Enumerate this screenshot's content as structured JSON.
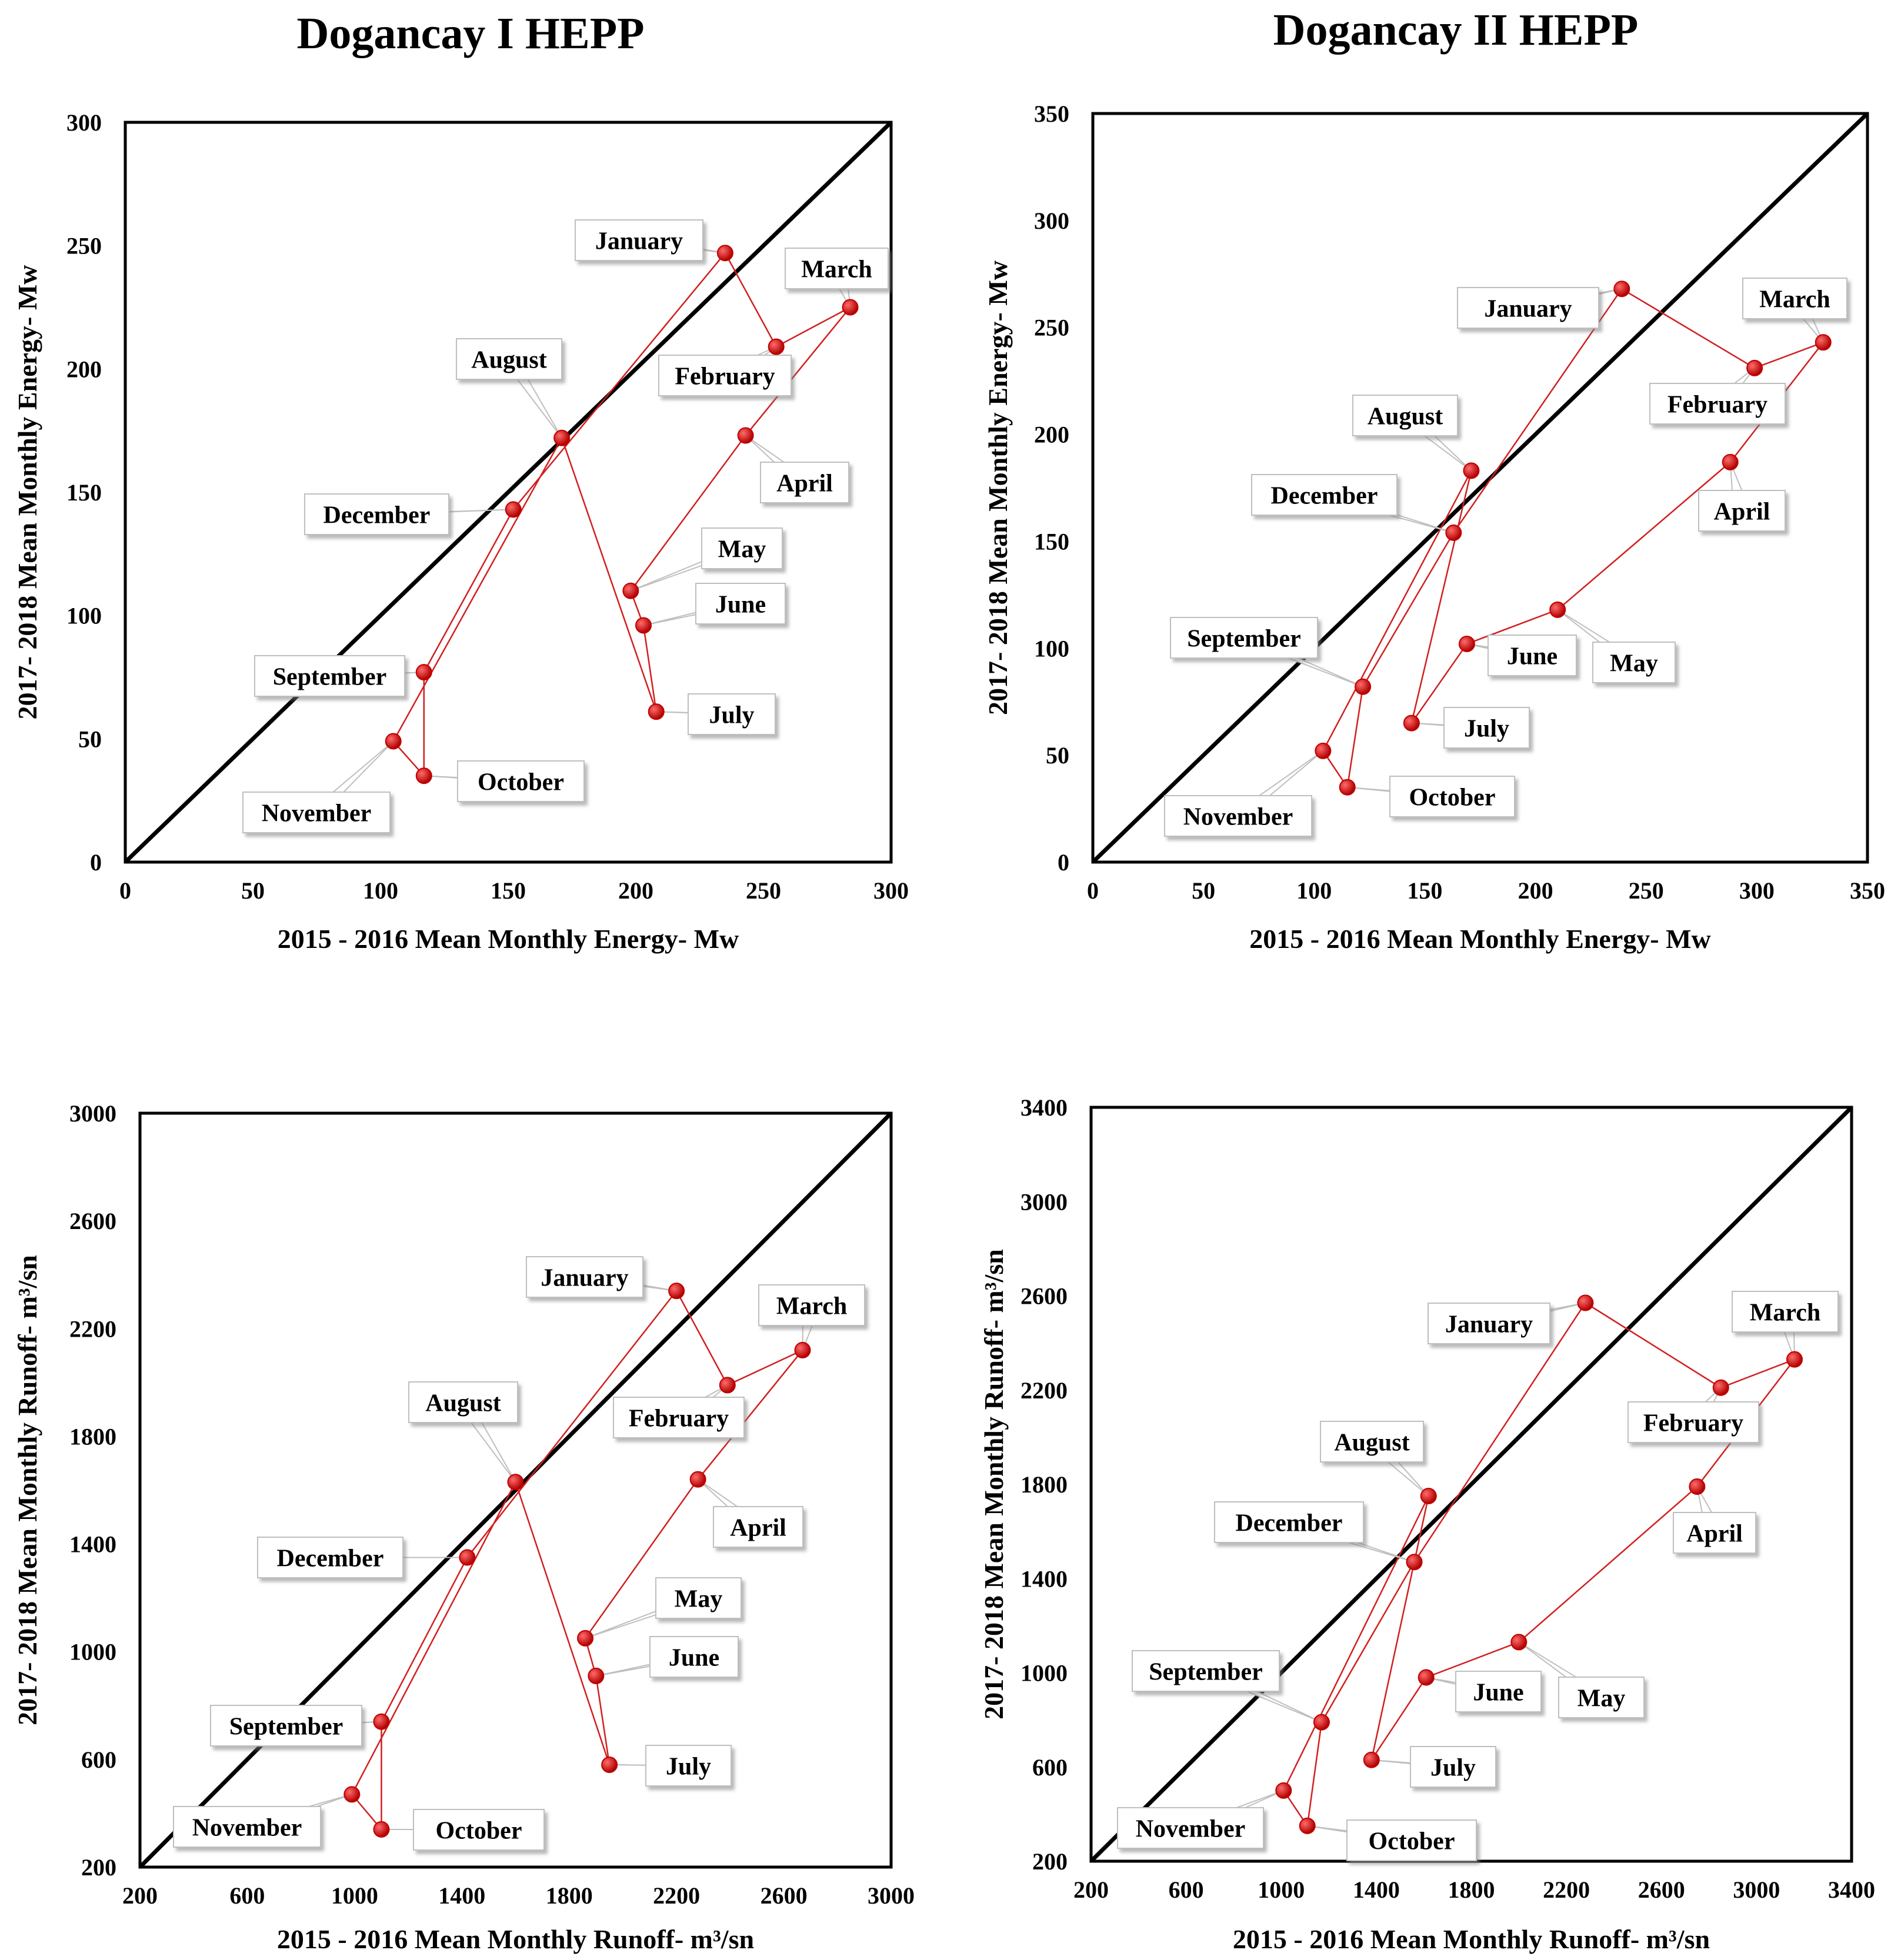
{
  "titles": {
    "left": "Dogancay I HEPP",
    "right": "Dogancay II HEPP"
  },
  "colors": {
    "series": "#d11f1f",
    "marker": "#c00000",
    "diagonal": "#000000",
    "frame": "#000000",
    "callout_border": "#bfbfbf"
  },
  "chart_data": [
    {
      "id": "energy-1",
      "type": "scatter",
      "title": "Dogancay I HEPP",
      "xlabel": "2015 - 2016 Mean Monthly Energy- Mw",
      "ylabel": "2017- 2018 Mean Monthly Energy- Mw",
      "xlim": [
        0,
        300
      ],
      "ylim": [
        0,
        300
      ],
      "xticks": [
        0,
        50,
        100,
        150,
        200,
        250,
        300
      ],
      "yticks": [
        0,
        50,
        100,
        150,
        200,
        250,
        300
      ],
      "diagonal": [
        [
          0,
          0
        ],
        [
          300,
          300
        ]
      ],
      "points": [
        {
          "label": "January",
          "x": 235,
          "y": 247
        },
        {
          "label": "February",
          "x": 255,
          "y": 209
        },
        {
          "label": "March",
          "x": 284,
          "y": 225
        },
        {
          "label": "April",
          "x": 243,
          "y": 173
        },
        {
          "label": "May",
          "x": 198,
          "y": 110
        },
        {
          "label": "June",
          "x": 203,
          "y": 96
        },
        {
          "label": "July",
          "x": 208,
          "y": 61
        },
        {
          "label": "August",
          "x": 171,
          "y": 172
        },
        {
          "label": "September",
          "x": 117,
          "y": 77
        },
        {
          "label": "October",
          "x": 117,
          "y": 35
        },
        {
          "label": "November",
          "x": 105,
          "y": 49
        },
        {
          "label": "December",
          "x": 152,
          "y": 143
        }
      ],
      "path_order": [
        "November",
        "October",
        "September",
        "December",
        "January",
        "February",
        "March",
        "April",
        "May",
        "June",
        "July",
        "August",
        "November"
      ]
    },
    {
      "id": "energy-2",
      "type": "scatter",
      "title": "Dogancay II HEPP",
      "xlabel": "2015 - 2016 Mean Monthly Energy- Mw",
      "ylabel": "2017- 2018 Mean Monthly Energy- Mw",
      "xlim": [
        0,
        350
      ],
      "ylim": [
        0,
        350
      ],
      "xticks": [
        0,
        50,
        100,
        150,
        200,
        250,
        300,
        350
      ],
      "yticks": [
        0,
        50,
        100,
        150,
        200,
        250,
        300,
        350
      ],
      "diagonal": [
        [
          0,
          0
        ],
        [
          350,
          350
        ]
      ],
      "points": [
        {
          "label": "January",
          "x": 239,
          "y": 268
        },
        {
          "label": "February",
          "x": 299,
          "y": 231
        },
        {
          "label": "March",
          "x": 330,
          "y": 243
        },
        {
          "label": "April",
          "x": 288,
          "y": 187
        },
        {
          "label": "May",
          "x": 210,
          "y": 118
        },
        {
          "label": "June",
          "x": 169,
          "y": 102
        },
        {
          "label": "July",
          "x": 144,
          "y": 65
        },
        {
          "label": "August",
          "x": 171,
          "y": 183
        },
        {
          "label": "September",
          "x": 122,
          "y": 82
        },
        {
          "label": "October",
          "x": 115,
          "y": 35
        },
        {
          "label": "November",
          "x": 104,
          "y": 52
        },
        {
          "label": "December",
          "x": 163,
          "y": 154
        }
      ],
      "path_order": [
        "November",
        "October",
        "September",
        "December",
        "January",
        "February",
        "March",
        "April",
        "May",
        "June",
        "July",
        "August",
        "November"
      ]
    },
    {
      "id": "runoff-1",
      "type": "scatter",
      "xlabel": "2015 - 2016 Mean Monthly Runoff- m³/sn",
      "ylabel": "2017- 2018 Mean Monthly Runoff- m³/sn",
      "xlim": [
        200,
        3000
      ],
      "ylim": [
        200,
        3000
      ],
      "xticks": [
        200,
        600,
        1000,
        1400,
        1800,
        2200,
        2600,
        3000
      ],
      "yticks": [
        200,
        600,
        1000,
        1400,
        1800,
        2200,
        2600,
        3000
      ],
      "diagonal": [
        [
          200,
          200
        ],
        [
          3000,
          3000
        ]
      ],
      "points": [
        {
          "label": "January",
          "x": 2200,
          "y": 2340
        },
        {
          "label": "February",
          "x": 2390,
          "y": 1990
        },
        {
          "label": "March",
          "x": 2670,
          "y": 2120
        },
        {
          "label": "April",
          "x": 2280,
          "y": 1640
        },
        {
          "label": "May",
          "x": 1860,
          "y": 1050
        },
        {
          "label": "June",
          "x": 1900,
          "y": 910
        },
        {
          "label": "July",
          "x": 1950,
          "y": 580
        },
        {
          "label": "August",
          "x": 1600,
          "y": 1630
        },
        {
          "label": "September",
          "x": 1100,
          "y": 740
        },
        {
          "label": "October",
          "x": 1100,
          "y": 340
        },
        {
          "label": "November",
          "x": 990,
          "y": 470
        },
        {
          "label": "December",
          "x": 1420,
          "y": 1350
        }
      ],
      "path_order": [
        "November",
        "October",
        "September",
        "December",
        "January",
        "February",
        "March",
        "April",
        "May",
        "June",
        "July",
        "August",
        "November"
      ]
    },
    {
      "id": "runoff-2",
      "type": "scatter",
      "xlabel": "2015 - 2016 Mean Monthly Runoff- m³/sn",
      "ylabel": "2017- 2018 Mean Monthly Runoff- m³/sn",
      "xlim": [
        200,
        3400
      ],
      "ylim": [
        200,
        3400
      ],
      "xticks": [
        200,
        600,
        1000,
        1400,
        1800,
        2200,
        2600,
        3000,
        3400
      ],
      "yticks": [
        200,
        600,
        1000,
        1400,
        1800,
        2200,
        2600,
        3000,
        3400
      ],
      "diagonal": [
        [
          200,
          200
        ],
        [
          3400,
          3400
        ]
      ],
      "points": [
        {
          "label": "January",
          "x": 2280,
          "y": 2570
        },
        {
          "label": "February",
          "x": 2850,
          "y": 2210
        },
        {
          "label": "March",
          "x": 3160,
          "y": 2330
        },
        {
          "label": "April",
          "x": 2750,
          "y": 1790
        },
        {
          "label": "May",
          "x": 2000,
          "y": 1130
        },
        {
          "label": "June",
          "x": 1610,
          "y": 980
        },
        {
          "label": "July",
          "x": 1380,
          "y": 630
        },
        {
          "label": "August",
          "x": 1620,
          "y": 1750
        },
        {
          "label": "September",
          "x": 1170,
          "y": 790
        },
        {
          "label": "October",
          "x": 1110,
          "y": 350
        },
        {
          "label": "November",
          "x": 1010,
          "y": 500
        },
        {
          "label": "December",
          "x": 1560,
          "y": 1470
        }
      ],
      "path_order": [
        "November",
        "October",
        "September",
        "December",
        "January",
        "February",
        "March",
        "April",
        "May",
        "June",
        "July",
        "August",
        "November"
      ]
    }
  ]
}
